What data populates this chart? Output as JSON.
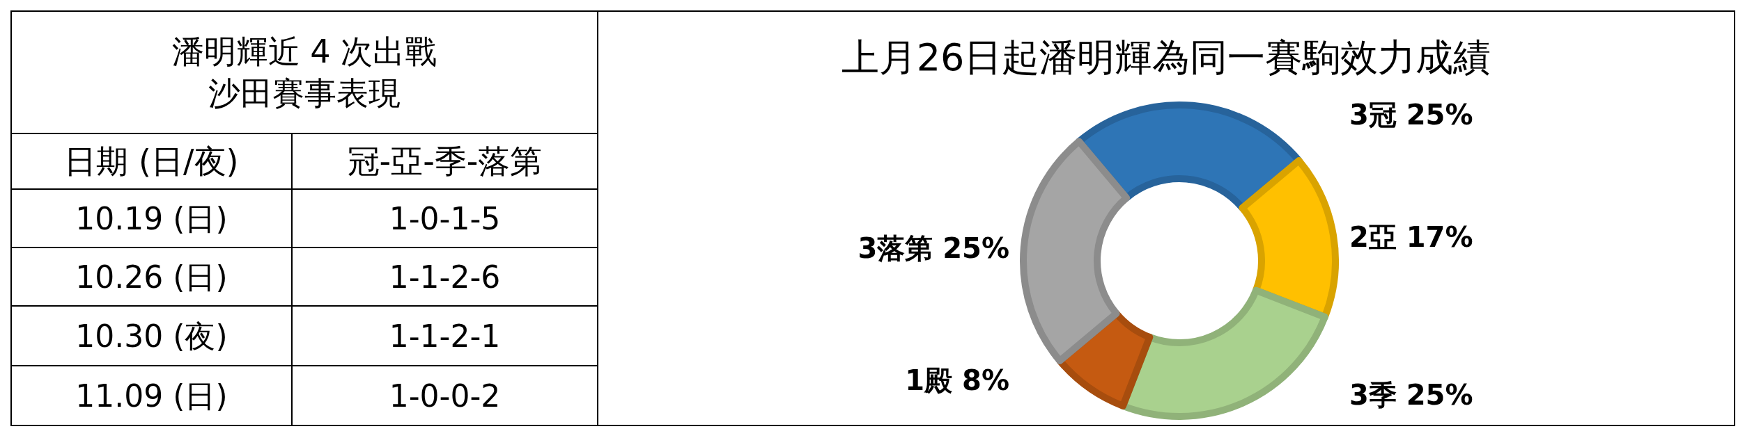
{
  "chart_data": [
    {
      "type": "other",
      "title": "潘明輝近 4 次出戰",
      "subtitle": "沙田賽事表現",
      "categories": [
        "日期 (日/夜)",
        "冠-亞-季-落第"
      ],
      "annotations": [
        "10.19 (日)",
        "1-0-1-5",
        "10.26 (日)",
        "1-1-2-6",
        "10.30 (夜)",
        "1-1-2-1",
        "11.09 (日)",
        "1-0-0-2"
      ]
    },
    {
      "type": "donut",
      "title": "上月26日起潘明輝為同一賽駒效力成績",
      "categories": [
        "3冠",
        "2亞",
        "3季",
        "1殿",
        "3落第"
      ],
      "values": [
        25,
        17,
        25,
        8,
        25
      ],
      "value_labels": [
        "25%",
        "17%",
        "25%",
        "8%",
        "25%"
      ],
      "colors": [
        "#2e75b6",
        "#ffc000",
        "#a9d18e",
        "#c55a11",
        "#a5a5a5"
      ]
    }
  ]
}
